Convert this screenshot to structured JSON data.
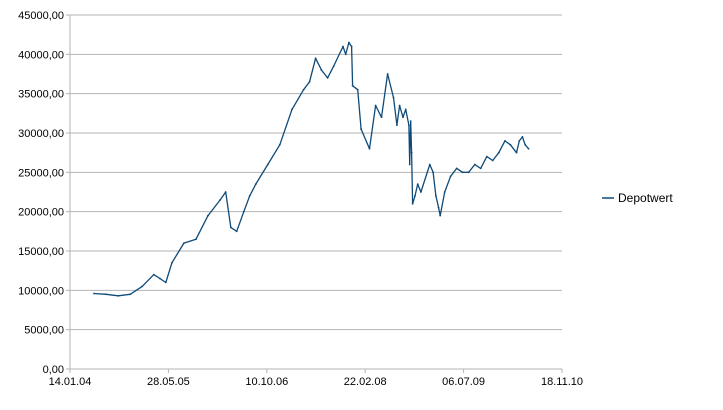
{
  "chart_data": {
    "type": "line",
    "title": "",
    "xlabel": "",
    "ylabel": "",
    "ylim": [
      0,
      45000
    ],
    "xlim": [
      "14.01.04",
      "18.11.10"
    ],
    "grid": {
      "horizontal": true,
      "vertical": false
    },
    "legend": {
      "position": "right"
    },
    "x_ticks": [
      "14.01.04",
      "28.05.05",
      "10.10.06",
      "22.02.08",
      "06.07.09",
      "18.11.10"
    ],
    "y_ticks": [
      "0,00",
      "5000,00",
      "10000,00",
      "15000,00",
      "20000,00",
      "25000,00",
      "30000,00",
      "35000,00",
      "40000,00",
      "45000,00"
    ],
    "series": [
      {
        "name": "Depotwert",
        "color": "#0f4a78",
        "x": [
          "15.05.04",
          "15.07.04",
          "15.09.04",
          "15.11.04",
          "15.01.05",
          "15.03.05",
          "15.04.05",
          "15.05.05",
          "15.06.05",
          "15.08.05",
          "15.10.05",
          "15.12.05",
          "15.02.06",
          "15.03.06",
          "10.04.06",
          "10.05.06",
          "15.06.06",
          "15.07.06",
          "15.08.06",
          "15.10.06",
          "15.12.06",
          "15.02.07",
          "15.04.07",
          "15.05.07",
          "15.06.07",
          "15.07.07",
          "15.08.07",
          "15.09.07",
          "01.11.07",
          "15.11.07",
          "01.12.07",
          "15.12.07",
          "20.12.07",
          "15.01.08",
          "01.02.08",
          "15.03.08",
          "15.04.08",
          "15.05.08",
          "15.06.08",
          "15.07.08",
          "01.08.08",
          "15.08.08",
          "01.09.08",
          "15.09.08",
          "01.10.08",
          "05.10.08",
          "10.10.08",
          "15.10.08",
          "20.10.08",
          "01.11.08",
          "15.11.08",
          "01.12.08",
          "15.01.09",
          "01.02.09",
          "15.02.09",
          "01.03.09",
          "09.03.09",
          "01.04.09",
          "01.05.09",
          "01.06.09",
          "01.07.09",
          "01.08.09",
          "01.09.09",
          "01.10.09",
          "01.11.09",
          "01.12.09",
          "01.01.10",
          "01.02.10",
          "01.03.10",
          "01.04.10",
          "15.04.10",
          "01.05.10",
          "15.05.10",
          "01.06.10"
        ],
        "y": [
          9600,
          9500,
          9300,
          9500,
          10500,
          12000,
          11500,
          11000,
          13500,
          16000,
          16500,
          19500,
          21500,
          22500,
          18000,
          17500,
          20000,
          22000,
          23500,
          26000,
          28500,
          33000,
          35500,
          36500,
          39500,
          38000,
          37000,
          38500,
          41000,
          40000,
          41500,
          41000,
          36000,
          35500,
          30500,
          28000,
          33500,
          32000,
          37500,
          34500,
          31000,
          33500,
          32000,
          33000,
          31000,
          26000,
          31500,
          27500,
          21000,
          22000,
          23500,
          22500,
          26000,
          25000,
          22000,
          20500,
          19500,
          22500,
          24500,
          25500,
          25000,
          25000,
          26000,
          25500,
          27000,
          26500,
          27500,
          29000,
          28500,
          27500,
          29000,
          29500,
          28500,
          28000
        ]
      }
    ]
  }
}
